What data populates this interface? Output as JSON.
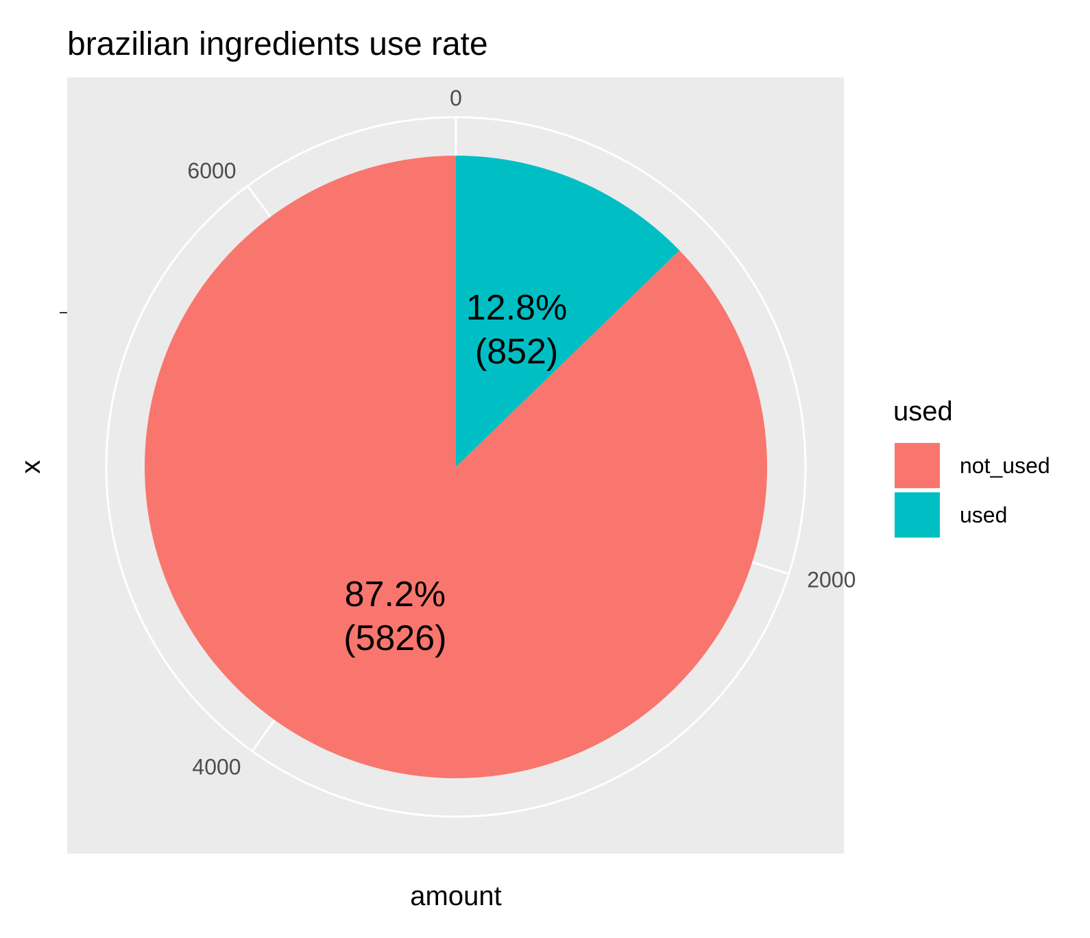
{
  "chart_data": {
    "type": "pie",
    "title": "brazilian ingredients use rate",
    "xlabel": "amount",
    "ylabel": "x",
    "y_tick_label": "",
    "radial_ticks": [
      0,
      2000,
      4000,
      6000
    ],
    "total": 6678,
    "legend": {
      "title": "used",
      "position": "right"
    },
    "slices": [
      {
        "name": "used",
        "value": 852,
        "percent": "12.8%",
        "count_label": "(852)",
        "color": "#00BFC4"
      },
      {
        "name": "not_used",
        "value": 5826,
        "percent": "87.2%",
        "count_label": "(5826)",
        "color": "#F8766D"
      }
    ],
    "legend_order": [
      "not_used",
      "used"
    ]
  },
  "colors": {
    "panel_background": "#EBEBEB",
    "grid": "#FFFFFF",
    "tick_text": "#4D4D4D"
  }
}
